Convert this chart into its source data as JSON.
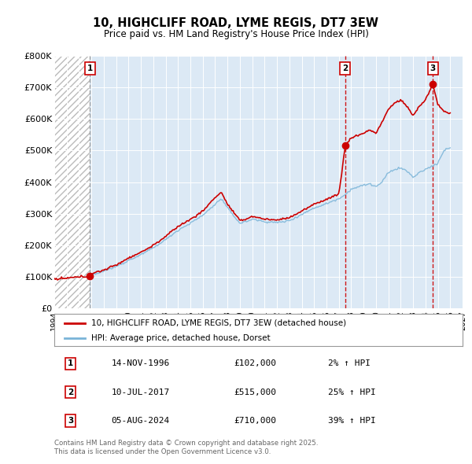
{
  "title": "10, HIGHCLIFF ROAD, LYME REGIS, DT7 3EW",
  "subtitle": "Price paid vs. HM Land Registry's House Price Index (HPI)",
  "bg_color": "#dce9f5",
  "hpi_line_color": "#7ab4d8",
  "price_line_color": "#cc0000",
  "sale_marker_color": "#cc0000",
  "ylim": [
    0,
    800000
  ],
  "yticks": [
    0,
    100000,
    200000,
    300000,
    400000,
    500000,
    600000,
    700000,
    800000
  ],
  "xmin": 1994.0,
  "xmax": 2027.0,
  "legend_entry1": "10, HIGHCLIFF ROAD, LYME REGIS, DT7 3EW (detached house)",
  "legend_entry2": "HPI: Average price, detached house, Dorset",
  "sale1_date": 1996.87,
  "sale1_price": 102000,
  "sale1_display": "14-NOV-1996",
  "sale1_pct": "2%",
  "sale2_date": 2017.52,
  "sale2_price": 515000,
  "sale2_display": "10-JUL-2017",
  "sale2_pct": "25%",
  "sale3_date": 2024.59,
  "sale3_price": 710000,
  "sale3_display": "05-AUG-2024",
  "sale3_pct": "39%",
  "footer": "Contains HM Land Registry data © Crown copyright and database right 2025.\nThis data is licensed under the Open Government Licence v3.0."
}
